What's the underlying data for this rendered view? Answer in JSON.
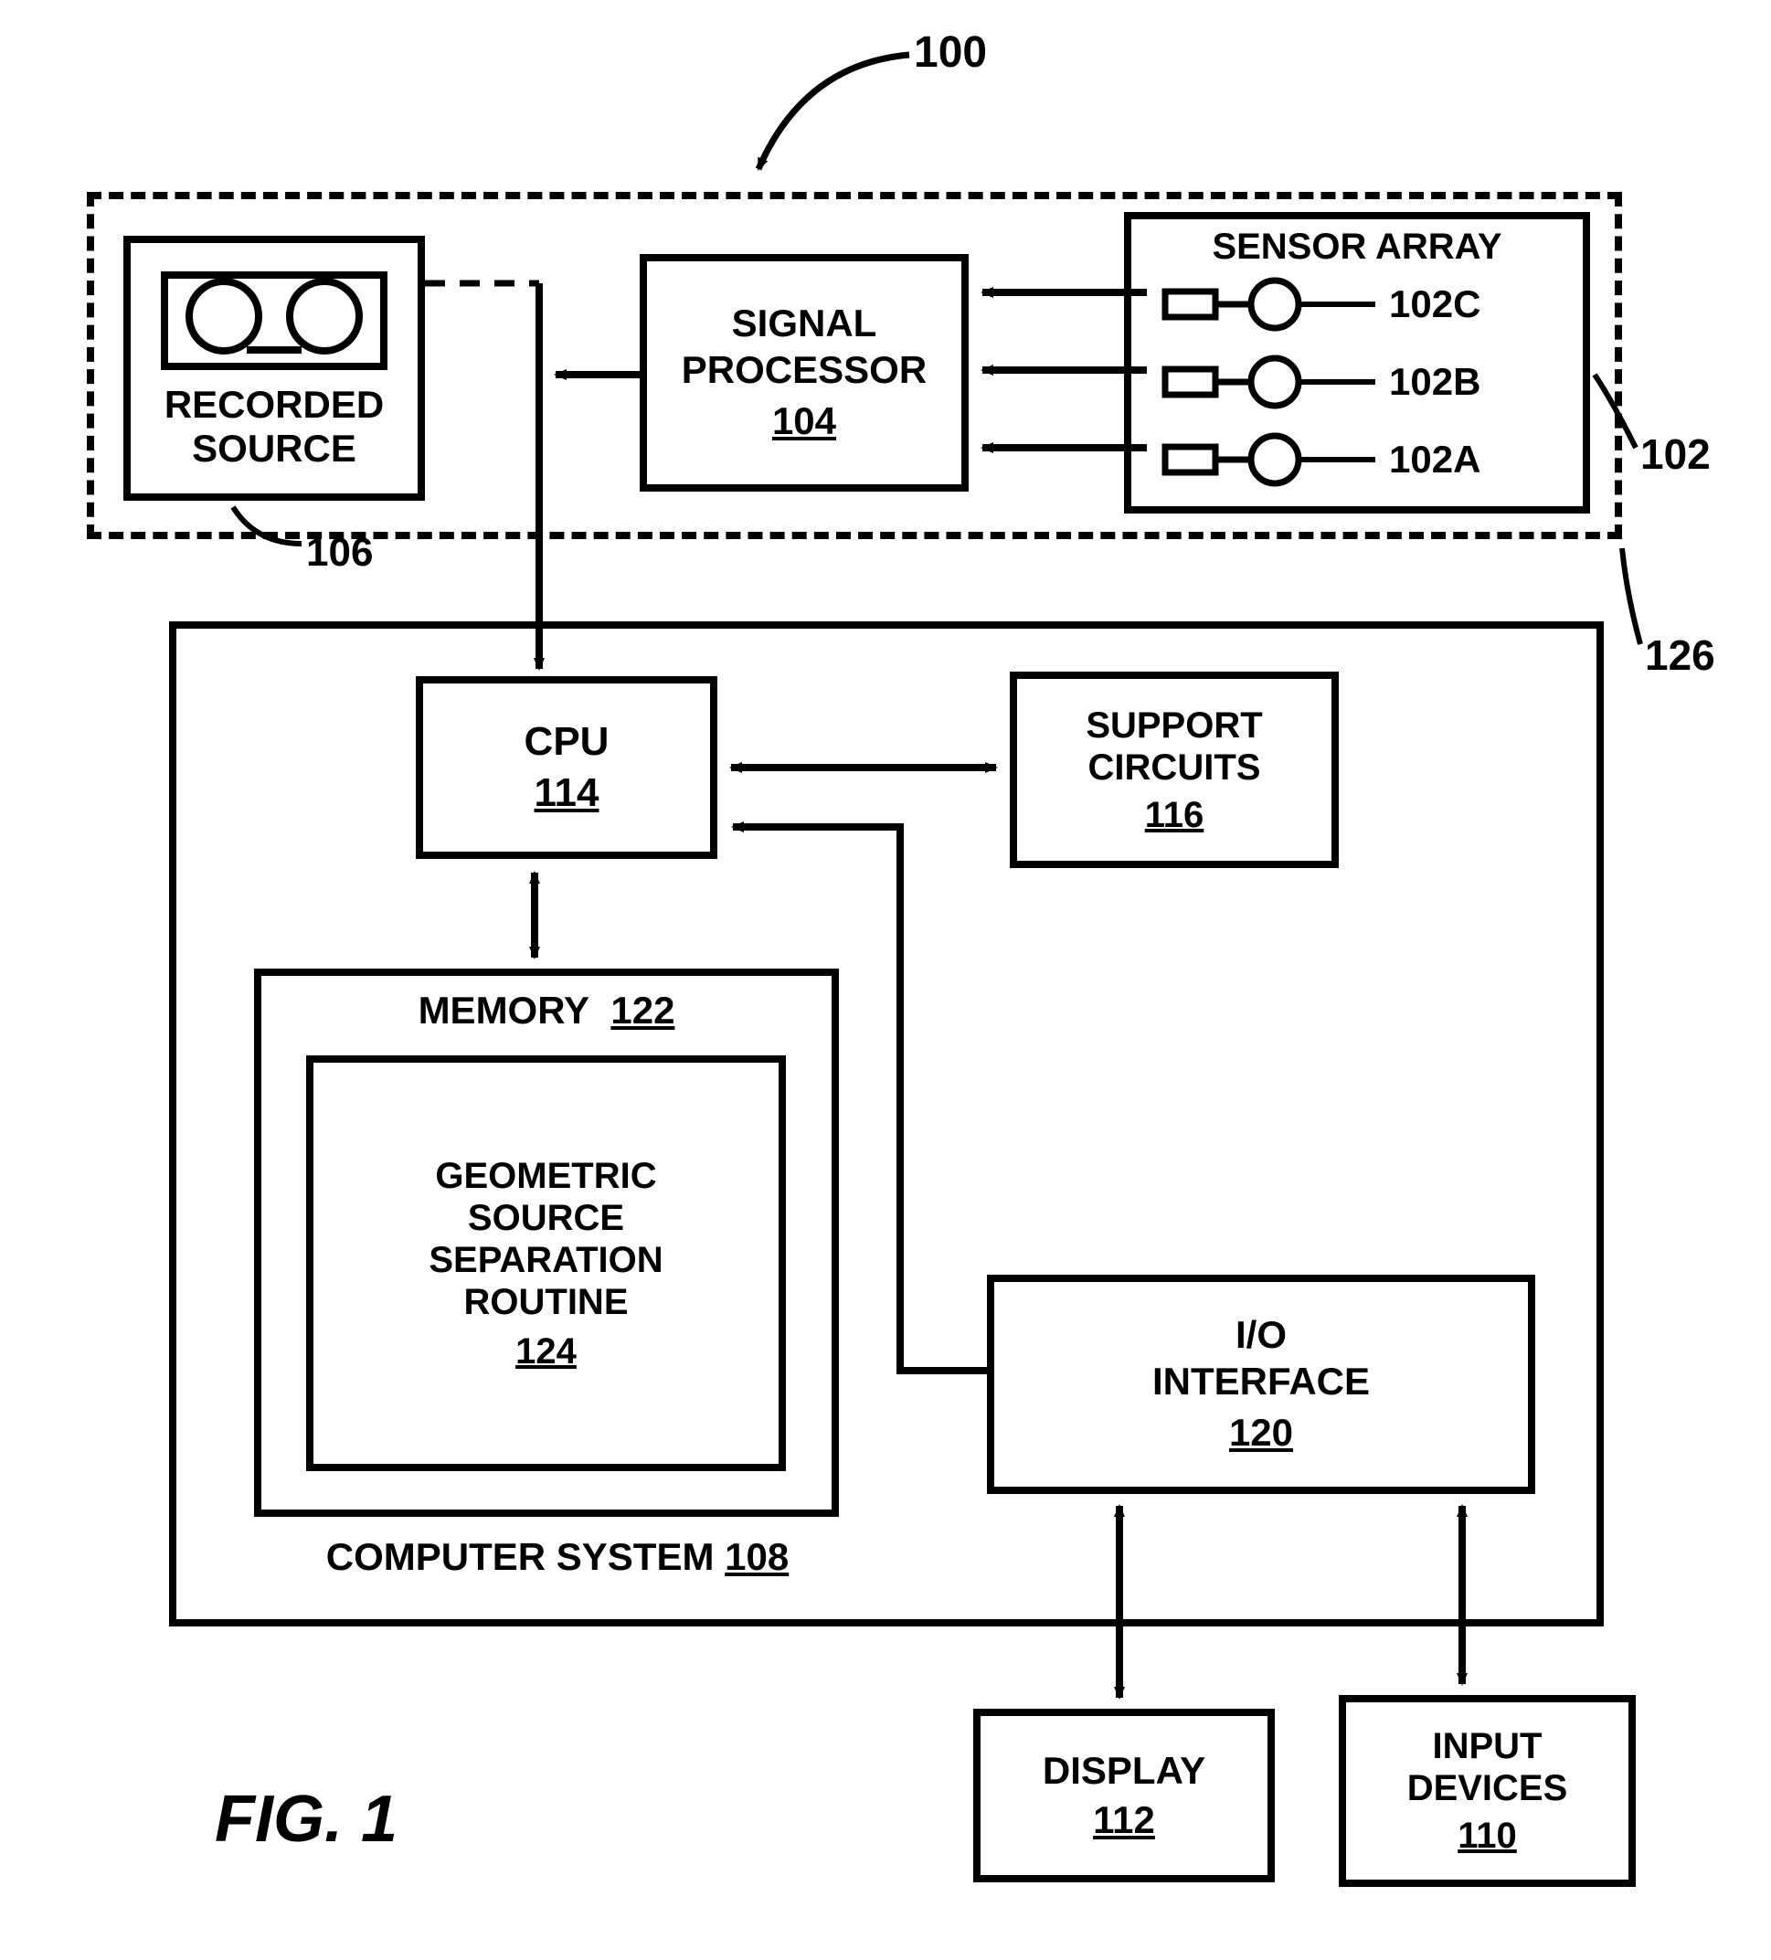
{
  "figure": {
    "title": "FIG. 1",
    "title_fontsize": 72,
    "title_weight": "bold",
    "title_style": "italic",
    "overall_ref": "100"
  },
  "colors": {
    "stroke": "#000000",
    "bg": "#ffffff",
    "line_width": 8
  },
  "fonts": {
    "block_label": 42,
    "ref_label": 42,
    "small_label": 40
  },
  "upper_group": {
    "ref": "126",
    "recorded_source": {
      "label": "RECORDED\nSOURCE",
      "ref": "106"
    },
    "signal_processor": {
      "label": "SIGNAL\nPROCESSOR",
      "ref": "104"
    },
    "sensor_array": {
      "title": "SENSOR ARRAY",
      "ref": "102",
      "sensors": [
        {
          "ref": "102C"
        },
        {
          "ref": "102B"
        },
        {
          "ref": "102A"
        }
      ]
    }
  },
  "computer_system": {
    "label": "COMPUTER SYSTEM",
    "ref": "108",
    "cpu": {
      "label": "CPU",
      "ref": "114"
    },
    "support": {
      "label": "SUPPORT\nCIRCUITS",
      "ref": "116"
    },
    "memory": {
      "label": "MEMORY",
      "ref": "122",
      "routine": {
        "label": "GEOMETRIC\nSOURCE\nSEPARATION\nROUTINE",
        "ref": "124"
      }
    },
    "io": {
      "label": "I/O\nINTERFACE",
      "ref": "120"
    }
  },
  "peripherals": {
    "display": {
      "label": "DISPLAY",
      "ref": "112"
    },
    "input": {
      "label": "INPUT\nDEVICES",
      "ref": "110"
    }
  }
}
